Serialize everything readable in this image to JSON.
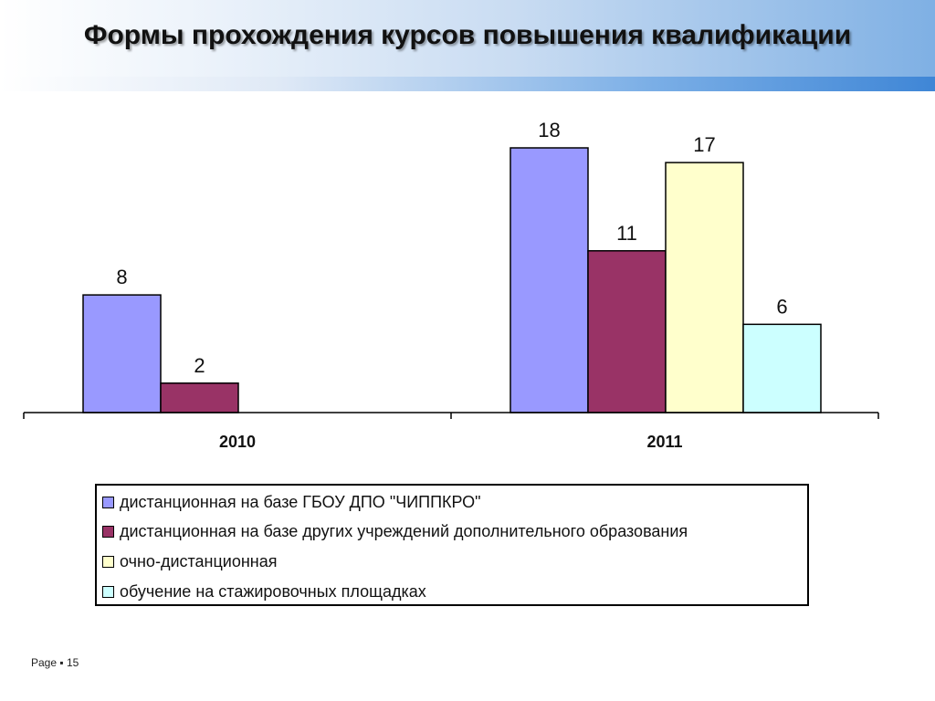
{
  "title": "Формы прохождения курсов повышения квалификации",
  "footer": {
    "page_label": "Page",
    "separator": "▪",
    "page_number": "15"
  },
  "chart_data": {
    "type": "bar",
    "title": "Формы прохождения курсов повышения квалификации",
    "categories": [
      "2010",
      "2011"
    ],
    "series": [
      {
        "name": "дистанционная на базе ГБОУ ДПО \"ЧИППКРО\"",
        "values": [
          8,
          18
        ],
        "color": "#9999ff"
      },
      {
        "name": "дистанционная на базе других учреждений дополнительного образования",
        "values": [
          2,
          11
        ],
        "color": "#993366"
      },
      {
        "name": "очно-дистанционная",
        "values": [
          null,
          17
        ],
        "color": "#ffffcc"
      },
      {
        "name": "обучение на стажировочных площадках",
        "values": [
          null,
          6
        ],
        "color": "#ccffff"
      }
    ],
    "ylim": [
      0,
      18
    ],
    "grid": false,
    "legend_position": "bottom",
    "xlabel": "",
    "ylabel": ""
  }
}
